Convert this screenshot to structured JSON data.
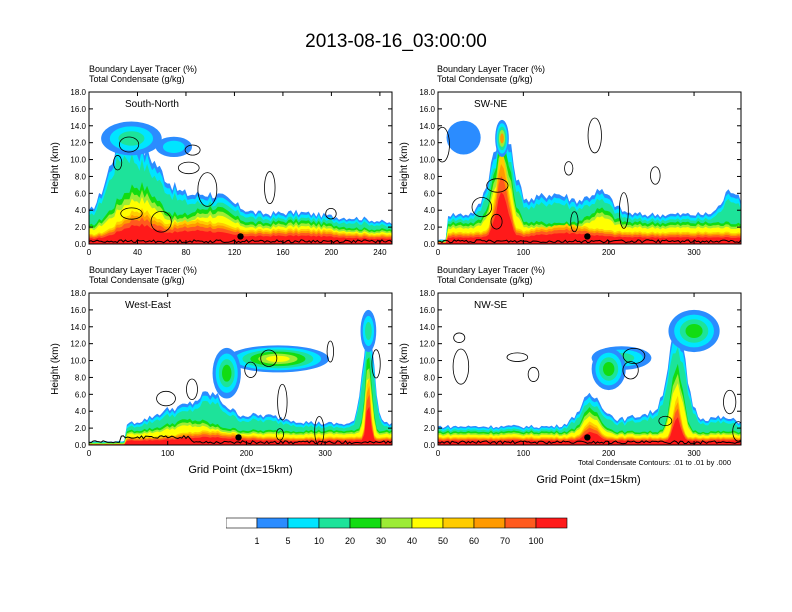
{
  "figure_title": "2013-08-16_03:00:00",
  "colors": {
    "levels": [
      "#ffffff",
      "#2b8cff",
      "#00e5ff",
      "#1de39a",
      "#12dc12",
      "#9cec36",
      "#ffff00",
      "#ffcc00",
      "#ff9a00",
      "#ff5a1e",
      "#ff1a1a"
    ],
    "contour": "#000000",
    "terrain": "#000000"
  },
  "colorbar": {
    "labels": [
      "1",
      "5",
      "10",
      "20",
      "30",
      "40",
      "50",
      "60",
      "70",
      "100"
    ]
  },
  "chart_data": [
    {
      "type": "area",
      "subtitle_line1": "Boundary Layer Tracer   (%)",
      "subtitle_line2": "Total Condensate   (g/kg)",
      "title": "South-North",
      "ylabel": "Height (km)",
      "xlabel": "",
      "xlim": [
        0,
        250
      ],
      "ylim": [
        0,
        18
      ],
      "xticks": [
        "0",
        "40",
        "80",
        "120",
        "160",
        "200",
        "240"
      ],
      "yticks": [
        "0.0",
        "2.0",
        "4.0",
        "6.0",
        "8.0",
        "10.0",
        "12.0",
        "14.0",
        "16.0",
        "18.0"
      ],
      "footnote": "",
      "marker_x": 125
    },
    {
      "type": "area",
      "subtitle_line1": "Boundary Layer Tracer   (%)",
      "subtitle_line2": "Total Condensate   (g/kg)",
      "title": "SW-NE",
      "ylabel": "Height (km)",
      "xlabel": "",
      "xlim": [
        0,
        355
      ],
      "ylim": [
        0,
        18
      ],
      "xticks": [
        "0",
        "100",
        "200",
        "300"
      ],
      "yticks": [
        "0.0",
        "2.0",
        "4.0",
        "6.0",
        "8.0",
        "10.0",
        "12.0",
        "14.0",
        "16.0",
        "18.0"
      ],
      "footnote": "",
      "marker_x": 175
    },
    {
      "type": "area",
      "subtitle_line1": "Boundary Layer Tracer   (%)",
      "subtitle_line2": "Total Condensate   (g/kg)",
      "title": "West-East",
      "ylabel": "Height (km)",
      "xlabel": "Grid Point (dx=15km)",
      "xlim": [
        0,
        385
      ],
      "ylim": [
        0,
        18
      ],
      "xticks": [
        "0",
        "100",
        "200",
        "300"
      ],
      "yticks": [
        "0.0",
        "2.0",
        "4.0",
        "6.0",
        "8.0",
        "10.0",
        "12.0",
        "14.0",
        "16.0",
        "18.0"
      ],
      "footnote": "",
      "marker_x": 190
    },
    {
      "type": "area",
      "subtitle_line1": "Boundary Layer Tracer   (%)",
      "subtitle_line2": "Total Condensate   (g/kg)",
      "title": "NW-SE",
      "ylabel": "Height (km)",
      "xlabel": "Grid Point (dx=15km)",
      "xlim": [
        0,
        355
      ],
      "ylim": [
        0,
        18
      ],
      "xticks": [
        "0",
        "100",
        "200",
        "300"
      ],
      "yticks": [
        "0.0",
        "2.0",
        "4.0",
        "6.0",
        "8.0",
        "10.0",
        "12.0",
        "14.0",
        "16.0",
        "18.0"
      ],
      "footnote": "Total Condensate Contours: .01 to .01 by .000",
      "marker_x": 175
    }
  ]
}
